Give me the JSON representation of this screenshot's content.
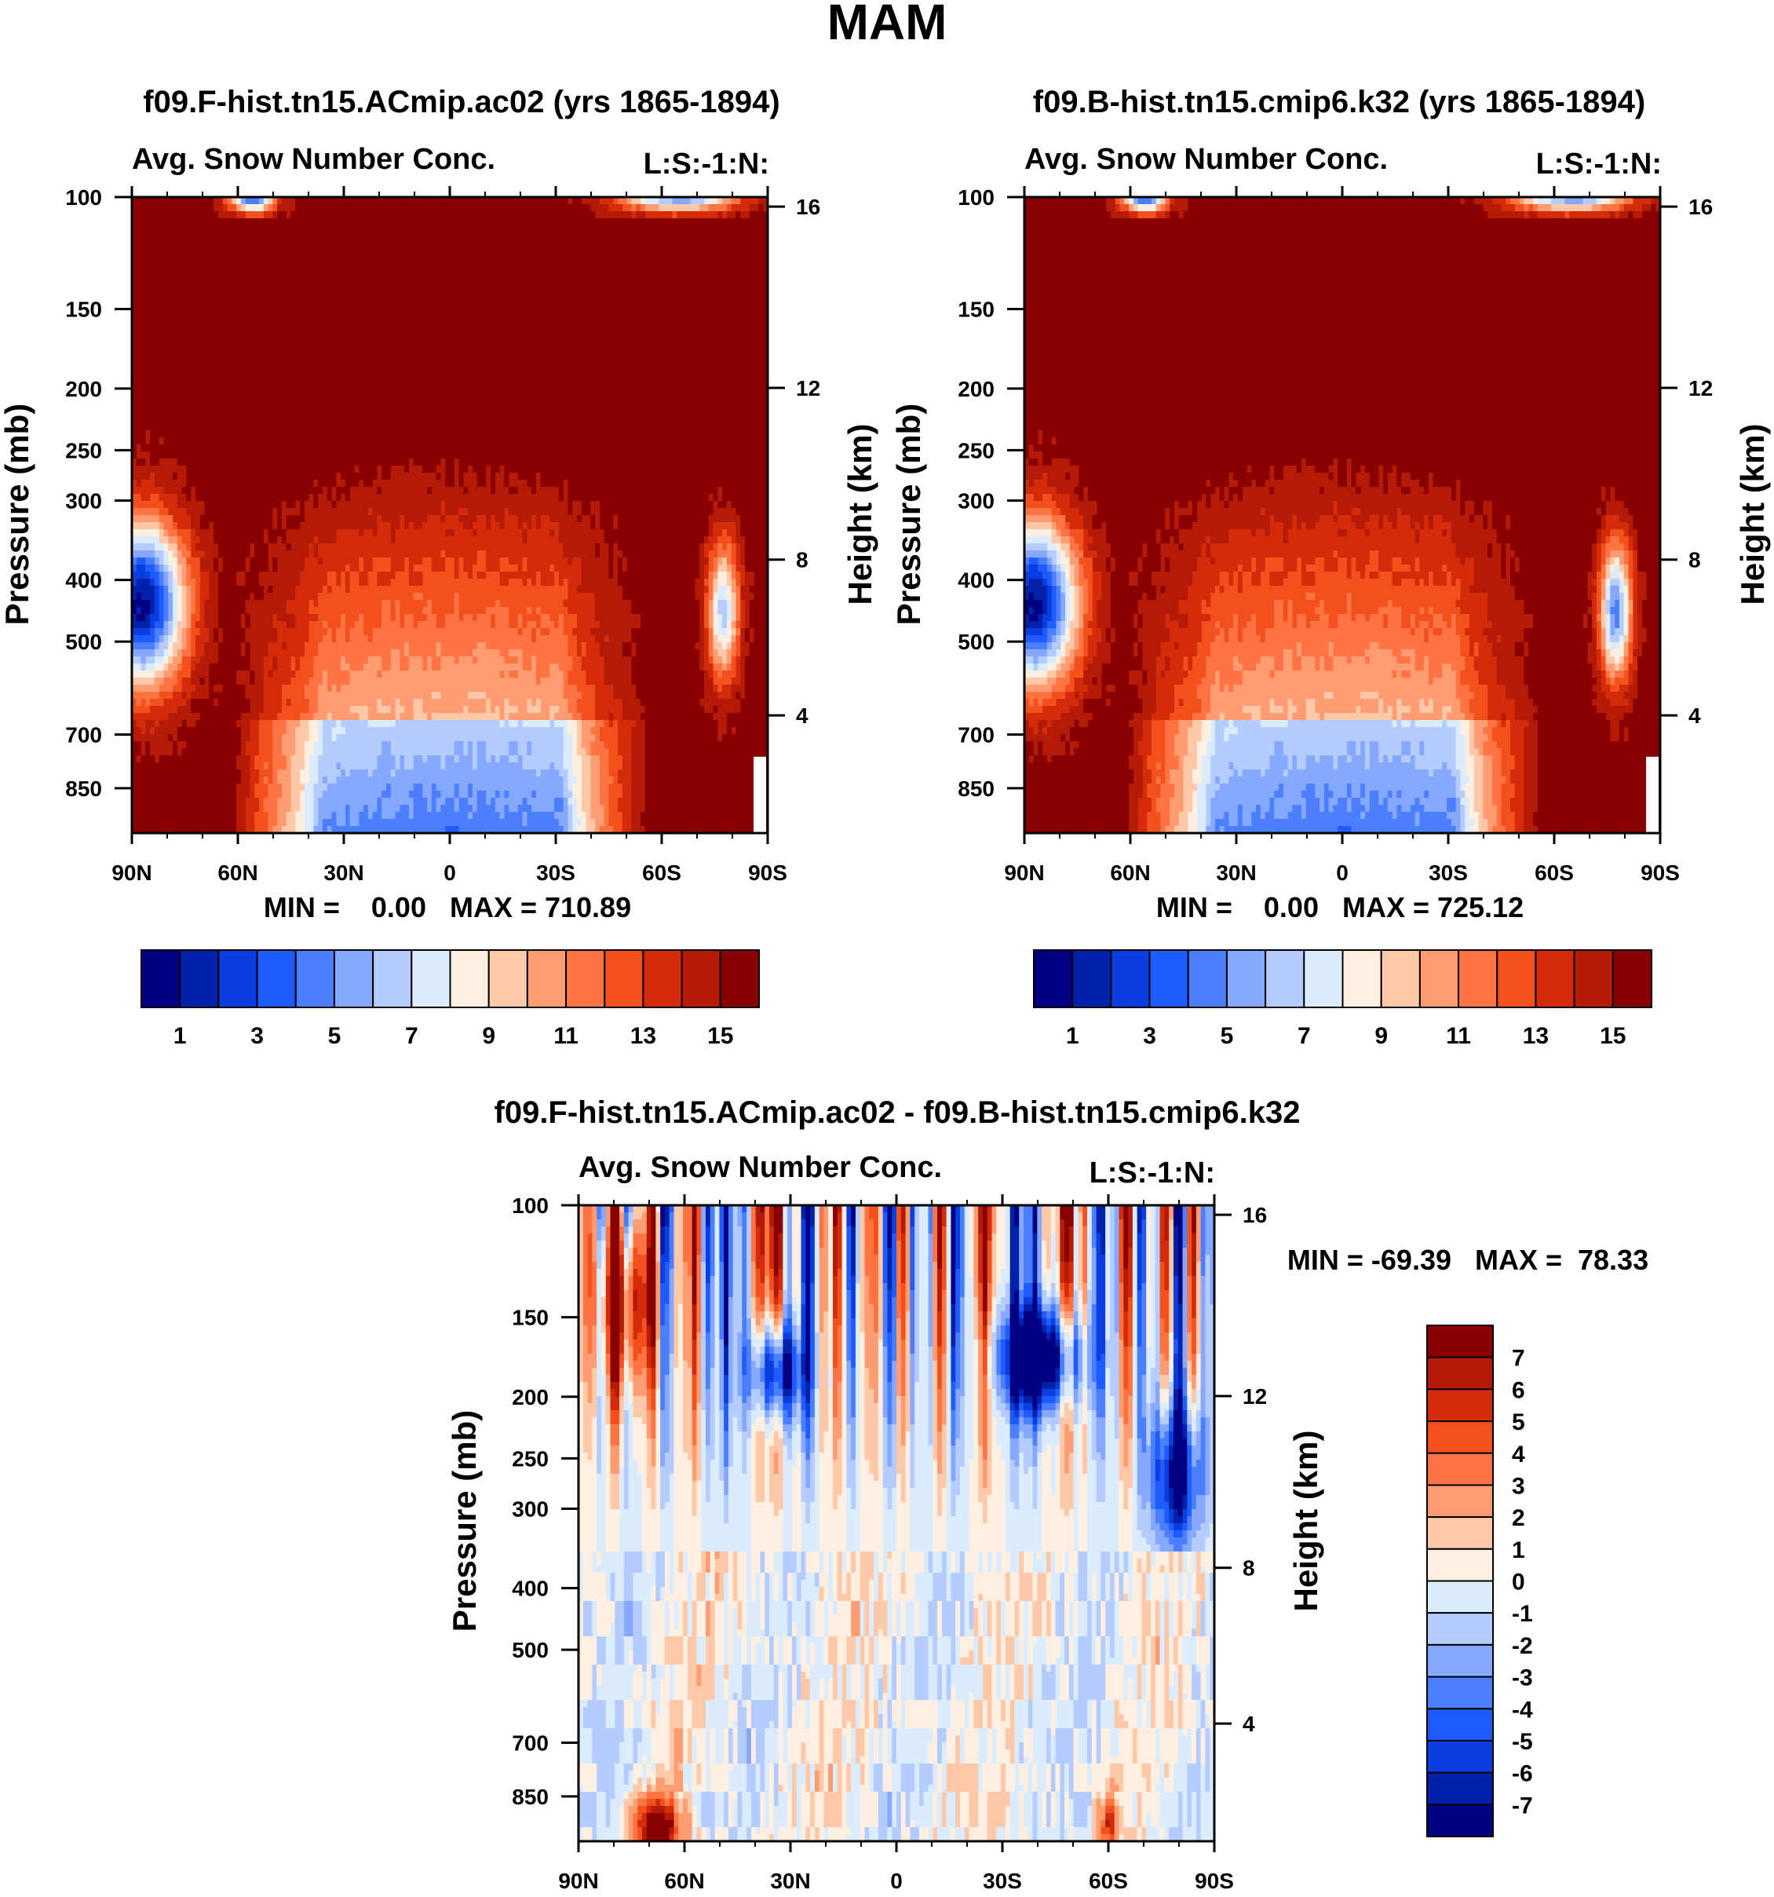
{
  "figure_title": "MAM",
  "palettes": {
    "field": [
      "#000080",
      "#0022aa",
      "#0a3ee0",
      "#1f5cff",
      "#4a80ff",
      "#86a8ff",
      "#b4ccff",
      "#dcecff",
      "#ffefe0",
      "#ffc8a8",
      "#ff9c72",
      "#ff7442",
      "#f2501c",
      "#d42c0a",
      "#b41a06",
      "#880000"
    ],
    "diff": [
      "#000080",
      "#0022aa",
      "#0a3ee0",
      "#1f5cff",
      "#4a80ff",
      "#86a8ff",
      "#b4ccff",
      "#dcecff",
      "#ffefe0",
      "#ffc8a8",
      "#ff9c72",
      "#ff7442",
      "#f2501c",
      "#d42c0a",
      "#b41a06",
      "#880000"
    ]
  },
  "chart_data": [
    {
      "type": "heatmap",
      "title": "f09.F-hist.tn15.ACmip.ac02 (yrs 1865-1894)",
      "subtitle_left": "Avg. Snow Number Conc.",
      "subtitle_right": "L:S:-1:N:",
      "ylabel": "Pressure (mb)",
      "ylabel_right": "Height (km)",
      "x_ticks": [
        "90N",
        "60N",
        "30N",
        "0",
        "30S",
        "60S",
        "90S"
      ],
      "y_ticks": [
        "100",
        "150",
        "200",
        "250",
        "300",
        "400",
        "500",
        "700",
        "850"
      ],
      "y_ticks_right": [
        "16",
        "12",
        "8",
        "4"
      ],
      "ylim": [
        100,
        1000
      ],
      "stats": "MIN =    0.00   MAX = 710.89",
      "min": 0.0,
      "max": 710.89,
      "colorbar_labels": [
        "1",
        "3",
        "5",
        "7",
        "9",
        "11",
        "13",
        "15"
      ],
      "levels": [
        1,
        2,
        3,
        4,
        5,
        6,
        7,
        8,
        9,
        10,
        11,
        12,
        13,
        14,
        15
      ]
    },
    {
      "type": "heatmap",
      "title": "f09.B-hist.tn15.cmip6.k32 (yrs 1865-1894)",
      "subtitle_left": "Avg. Snow Number Conc.",
      "subtitle_right": "L:S:-1:N:",
      "ylabel": "Pressure (mb)",
      "ylabel_right": "Height (km)",
      "x_ticks": [
        "90N",
        "60N",
        "30N",
        "0",
        "30S",
        "60S",
        "90S"
      ],
      "y_ticks": [
        "100",
        "150",
        "200",
        "250",
        "300",
        "400",
        "500",
        "700",
        "850"
      ],
      "y_ticks_right": [
        "16",
        "12",
        "8",
        "4"
      ],
      "ylim": [
        100,
        1000
      ],
      "stats": "MIN =    0.00   MAX = 725.12",
      "min": 0.0,
      "max": 725.12,
      "colorbar_labels": [
        "1",
        "3",
        "5",
        "7",
        "9",
        "11",
        "13",
        "15"
      ],
      "levels": [
        1,
        2,
        3,
        4,
        5,
        6,
        7,
        8,
        9,
        10,
        11,
        12,
        13,
        14,
        15
      ]
    },
    {
      "type": "heatmap",
      "title": "f09.F-hist.tn15.ACmip.ac02 - f09.B-hist.tn15.cmip6.k32",
      "subtitle_left": "Avg. Snow Number Conc.",
      "subtitle_right": "L:S:-1:N:",
      "ylabel": "Pressure (mb)",
      "ylabel_right": "Height (km)",
      "x_ticks": [
        "90N",
        "60N",
        "30N",
        "0",
        "30S",
        "60S",
        "90S"
      ],
      "y_ticks": [
        "100",
        "150",
        "200",
        "250",
        "300",
        "400",
        "500",
        "700",
        "850"
      ],
      "y_ticks_right": [
        "16",
        "12",
        "8",
        "4"
      ],
      "ylim": [
        100,
        1000
      ],
      "stats": "MIN = -69.39   MAX =  78.33",
      "min": -69.39,
      "max": 78.33,
      "colorbar_labels": [
        "7",
        "6",
        "5",
        "4",
        "3",
        "2",
        "1",
        "0",
        "-1",
        "-2",
        "-3",
        "-4",
        "-5",
        "-6",
        "-7"
      ],
      "levels": [
        -7,
        -6,
        -5,
        -4,
        -3,
        -2,
        -1,
        0,
        1,
        2,
        3,
        4,
        5,
        6,
        7
      ]
    }
  ]
}
